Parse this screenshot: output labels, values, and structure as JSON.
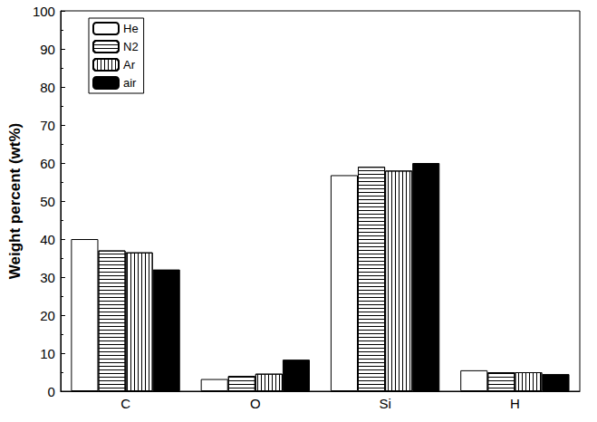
{
  "chart_data": {
    "type": "bar",
    "y_label": "Weight percent (wt%)",
    "categories": [
      "C",
      "O",
      "Si",
      "H"
    ],
    "series": [
      {
        "name": "He",
        "color": "#ffffff",
        "values": [
          40,
          3.2,
          56.8,
          5.5
        ]
      },
      {
        "name": "N2",
        "color": "#ffffff",
        "values": [
          37,
          4,
          59,
          5
        ]
      },
      {
        "name": "Ar",
        "color": "#ffffff",
        "values": [
          36.5,
          4.6,
          58,
          5
        ]
      },
      {
        "name": "air",
        "color": "#000000",
        "values": [
          32,
          8.3,
          60,
          4.5
        ]
      }
    ],
    "ylim": [
      0,
      100
    ],
    "yticks": [
      0,
      10,
      20,
      30,
      40,
      50,
      60,
      70,
      80,
      90,
      100
    ],
    "grid": false,
    "legend": "upper left"
  }
}
